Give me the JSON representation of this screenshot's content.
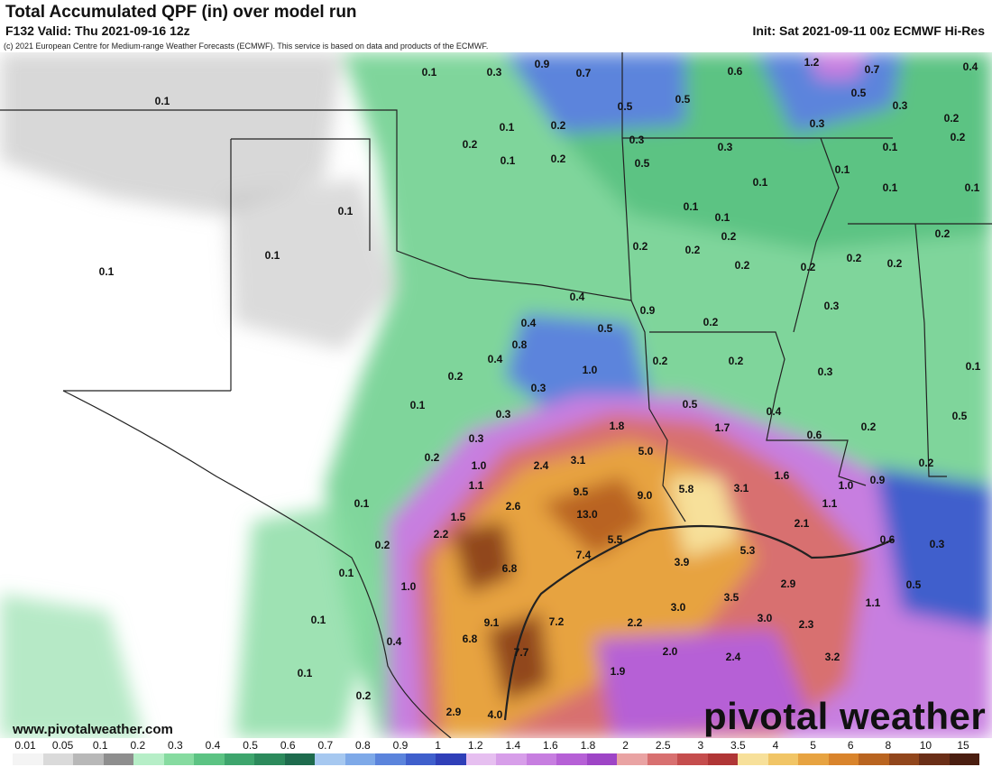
{
  "header": {
    "title": "Total Accumulated QPF (in) over model run",
    "valid": "F132 Valid: Thu 2021-09-16 12z",
    "init": "Init: Sat 2021-09-11 00z ECMWF Hi-Res",
    "copyright": "(c) 2021 European Centre for Medium-range Weather Forecasts (ECMWF). This service is based on data and products of the ECMWF."
  },
  "map_labels": [
    "0.1",
    "0.3",
    "0.9",
    "0.7",
    "0.6",
    "1.2",
    "0.7",
    "0.4",
    "0.1",
    "0.5",
    "0.5",
    "0.5",
    "0.3",
    "0.2",
    "0.1",
    "0.2",
    "0.2",
    "0.3",
    "0.3",
    "0.1",
    "0.2",
    "0.1",
    "0.2",
    "0.5",
    "0.1",
    "0.1",
    "0.1",
    "0.1",
    "0.1",
    "0.3",
    "0.2",
    "0.1",
    "0.1",
    "0.2",
    "0.2",
    "0.2",
    "0.2",
    "0.2",
    "0.2",
    "0.1",
    "0.2",
    "0.4",
    "0.9",
    "0.4",
    "0.5",
    "0.2",
    "0.3",
    "0.1",
    "0.8",
    "0.4",
    "1.0",
    "0.2",
    "0.2",
    "0.3",
    "0.3",
    "0.2",
    "0.1",
    "0.1",
    "0.3",
    "0.5",
    "0.4",
    "1.7",
    "1.8",
    "0.6",
    "0.2",
    "0.5",
    "0.3",
    "1.0",
    "2.4",
    "3.1",
    "5.0",
    "1.6",
    "0.2",
    "0.9",
    "0.2",
    "1.1",
    "2.6",
    "9.5",
    "9.0",
    "5.8",
    "3.1",
    "1.0",
    "1.1",
    "0.1",
    "1.5",
    "13.0",
    "2.1",
    "0.6",
    "0.3",
    "2.2",
    "0.2",
    "7.4",
    "5.5",
    "5.3",
    "6.8",
    "3.9",
    "0.1",
    "1.0",
    "2.9",
    "0.5",
    "3.5",
    "1.1",
    "0.1",
    "9.1",
    "7.2",
    "3.0",
    "3.0",
    "2.2",
    "2.3",
    "0.4",
    "6.8",
    "7.7",
    "2.0",
    "2.4",
    "3.2",
    "1.9",
    "0.1",
    "0.2",
    "2.9",
    "4.0"
  ],
  "footer": {
    "site": "www.pivotalweather.com",
    "brand": "pivotal weather"
  },
  "legend": {
    "ticks": [
      "0.01",
      "0.05",
      "0.1",
      "0.2",
      "0.3",
      "0.4",
      "0.5",
      "0.6",
      "0.7",
      "0.8",
      "0.9",
      "1",
      "1.2",
      "1.4",
      "1.6",
      "1.8",
      "2",
      "2.5",
      "3",
      "3.5",
      "4",
      "5",
      "6",
      "8",
      "10",
      "15"
    ],
    "colors": [
      "#f4f4f4",
      "#dadada",
      "#b8b8b8",
      "#8e8e8e",
      "#b6eec7",
      "#86dba0",
      "#5cc383",
      "#3ea56d",
      "#2c8a5c",
      "#1e6b4d",
      "#a6c8f0",
      "#7ea9e8",
      "#5b84dc",
      "#3f5fcc",
      "#2f3fb8",
      "#e6bff0",
      "#d79ee9",
      "#c77ee0",
      "#b660d6",
      "#9e45c6",
      "#e9a3a3",
      "#d87070",
      "#c54d4d",
      "#b03636",
      "#f7e09a",
      "#f1c566",
      "#e7a341",
      "#d9842c",
      "#b96420",
      "#91461c",
      "#6a2e17",
      "#4a1e10"
    ]
  }
}
